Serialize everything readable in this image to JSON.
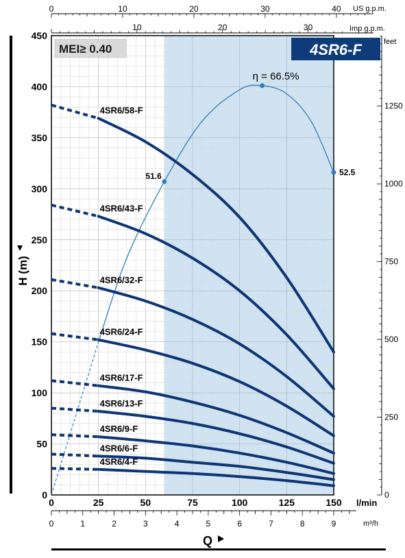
{
  "chart_data": {
    "type": "line",
    "title": "4SR6-F",
    "badge": "MEI≥ 0.40",
    "y_label": "H (m)",
    "x_label": "Q",
    "x_unit_lmin": "l/min",
    "x_unit_m3h": "m³/h",
    "top_unit_us": "US g.p.m.",
    "top_unit_imp": "Imp g.p.m.",
    "right_unit": "feet",
    "xlim": [
      0,
      150
    ],
    "ylim": [
      0,
      450
    ],
    "x_ticks_lmin": [
      0,
      25,
      50,
      75,
      100,
      125,
      150
    ],
    "y_ticks_m": [
      0,
      50,
      100,
      150,
      200,
      250,
      300,
      350,
      400,
      450
    ],
    "x_ticks_m3h": [
      0,
      1,
      2,
      3,
      4,
      5,
      6,
      7,
      8,
      9
    ],
    "x_ticks_us_gpm": [
      0,
      10,
      20,
      30,
      40
    ],
    "x_ticks_imp_gpm": [
      10,
      20,
      30
    ],
    "y_ticks_feet": [
      0,
      250,
      500,
      750,
      1000,
      1250
    ],
    "recommended_range": [
      60,
      150
    ],
    "series": [
      {
        "name": "4SR6/58-F",
        "dashed": [
          [
            0,
            382
          ],
          [
            25,
            369
          ]
        ],
        "solid": [
          [
            25,
            369
          ],
          [
            50,
            346
          ],
          [
            75,
            314
          ],
          [
            100,
            272
          ],
          [
            125,
            213
          ],
          [
            150,
            140
          ]
        ]
      },
      {
        "name": "4SR6/43-F",
        "dashed": [
          [
            0,
            284
          ],
          [
            25,
            273
          ]
        ],
        "solid": [
          [
            25,
            273
          ],
          [
            50,
            256
          ],
          [
            75,
            232
          ],
          [
            100,
            200
          ],
          [
            125,
            157
          ],
          [
            150,
            104
          ]
        ]
      },
      {
        "name": "4SR6/32-F",
        "dashed": [
          [
            0,
            211
          ],
          [
            25,
            203
          ]
        ],
        "solid": [
          [
            25,
            203
          ],
          [
            50,
            190
          ],
          [
            75,
            172
          ],
          [
            100,
            148
          ],
          [
            125,
            116
          ],
          [
            150,
            77
          ]
        ]
      },
      {
        "name": "4SR6/24-F",
        "dashed": [
          [
            0,
            158
          ],
          [
            25,
            152
          ]
        ],
        "solid": [
          [
            25,
            152
          ],
          [
            50,
            142
          ],
          [
            75,
            129
          ],
          [
            100,
            111
          ],
          [
            125,
            87
          ],
          [
            150,
            58
          ]
        ]
      },
      {
        "name": "4SR6/17-F",
        "dashed": [
          [
            0,
            112
          ],
          [
            25,
            107
          ]
        ],
        "solid": [
          [
            25,
            107
          ],
          [
            50,
            101
          ],
          [
            75,
            91
          ],
          [
            100,
            78
          ],
          [
            125,
            61
          ],
          [
            150,
            41
          ]
        ]
      },
      {
        "name": "4SR6/13-F",
        "dashed": [
          [
            0,
            85
          ],
          [
            25,
            82
          ]
        ],
        "solid": [
          [
            25,
            82
          ],
          [
            50,
            77
          ],
          [
            75,
            70
          ],
          [
            100,
            60
          ],
          [
            125,
            47
          ],
          [
            150,
            31
          ]
        ]
      },
      {
        "name": "4SR6/9-F",
        "dashed": [
          [
            0,
            59
          ],
          [
            25,
            57
          ]
        ],
        "solid": [
          [
            25,
            57
          ],
          [
            50,
            53
          ],
          [
            75,
            48
          ],
          [
            100,
            41
          ],
          [
            125,
            32
          ],
          [
            150,
            21
          ]
        ]
      },
      {
        "name": "4SR6/6-F",
        "dashed": [
          [
            0,
            40
          ],
          [
            25,
            38
          ]
        ],
        "solid": [
          [
            25,
            38
          ],
          [
            50,
            36
          ],
          [
            75,
            32
          ],
          [
            100,
            28
          ],
          [
            125,
            22
          ],
          [
            150,
            15
          ]
        ]
      },
      {
        "name": "4SR6/4-F",
        "dashed": [
          [
            0,
            26
          ],
          [
            25,
            25
          ]
        ],
        "solid": [
          [
            25,
            25
          ],
          [
            50,
            23
          ],
          [
            75,
            21
          ],
          [
            100,
            18
          ],
          [
            125,
            14
          ],
          [
            150,
            9
          ]
        ]
      }
    ],
    "efficiency_curve": {
      "label": "η = 66.5%",
      "dashed": [
        [
          0,
          0
        ],
        [
          25,
          150
        ]
      ],
      "solid": [
        [
          25,
          150
        ],
        [
          40,
          232
        ],
        [
          60,
          307
        ],
        [
          80,
          366
        ],
        [
          100,
          397
        ],
        [
          112,
          401
        ],
        [
          125,
          393
        ],
        [
          138,
          366
        ],
        [
          150,
          316
        ]
      ],
      "points": [
        {
          "label": "51.6",
          "x": 60,
          "y": 307
        },
        {
          "label": "",
          "x": 112,
          "y": 401
        },
        {
          "label": "52.5",
          "x": 150,
          "y": 316
        }
      ]
    }
  }
}
